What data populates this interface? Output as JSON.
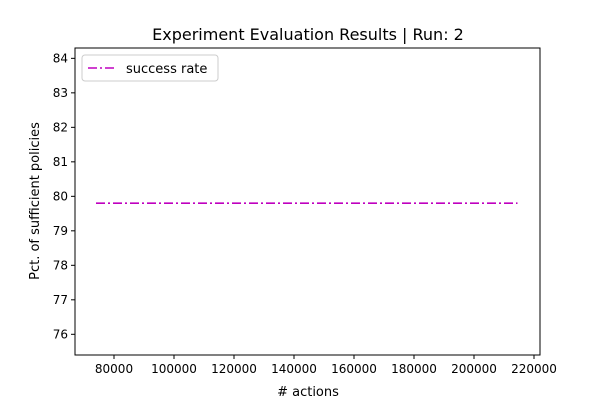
{
  "chart_data": {
    "type": "line",
    "title": "Experiment Evaluation Results | Run: 2",
    "xlabel": "# actions",
    "ylabel": "Pct. of sufficient policies",
    "xlim": [
      67000,
      222000
    ],
    "ylim": [
      75.4,
      84.3
    ],
    "xticks": [
      80000,
      100000,
      120000,
      140000,
      160000,
      180000,
      200000,
      220000
    ],
    "yticks": [
      76,
      77,
      78,
      79,
      80,
      81,
      82,
      83,
      84
    ],
    "grid": false,
    "legend_position": "upper-left",
    "series": [
      {
        "name": "success rate",
        "color": "#bf00bf",
        "line_style": "dash-dot",
        "x": [
          74000,
          214500
        ],
        "y": [
          79.8,
          79.8
        ]
      }
    ]
  }
}
